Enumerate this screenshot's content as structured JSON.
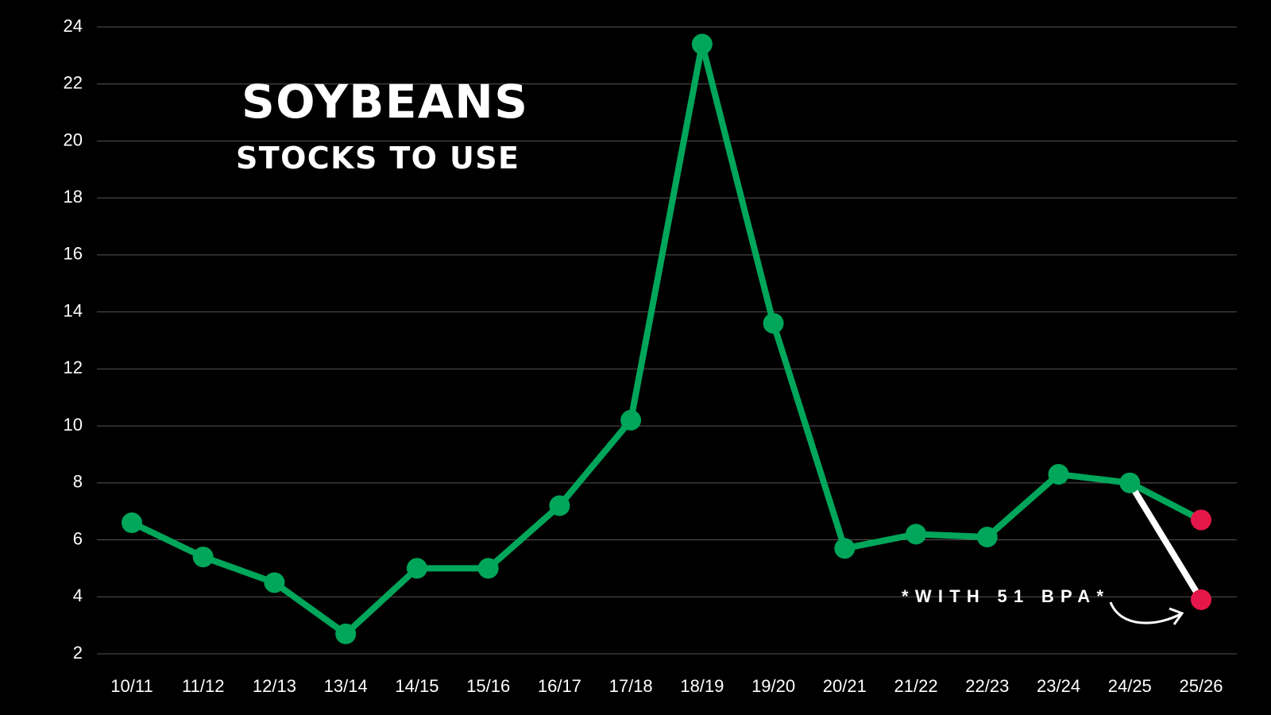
{
  "chart_data": {
    "type": "line",
    "title": "SOYBEANS",
    "subtitle": "STOCKS TO USE",
    "annotation": "*WITH 51 BPA*",
    "categories": [
      "10/11",
      "11/12",
      "12/13",
      "13/14",
      "14/15",
      "15/16",
      "16/17",
      "17/18",
      "18/19",
      "19/20",
      "20/21",
      "21/22",
      "22/23",
      "23/24",
      "24/25",
      "25/26"
    ],
    "series": [
      {
        "color": "#00a65a",
        "values": [
          6.6,
          5.4,
          4.5,
          2.7,
          5.0,
          5.0,
          7.2,
          10.2,
          23.4,
          13.6,
          5.7,
          6.2,
          6.1,
          8.3,
          8.0,
          6.7
        ],
        "marker_colors": [
          "#00a65a",
          "#00a65a",
          "#00a65a",
          "#00a65a",
          "#00a65a",
          "#00a65a",
          "#00a65a",
          "#00a65a",
          "#00a65a",
          "#00a65a",
          "#00a65a",
          "#00a65a",
          "#00a65a",
          "#00a65a",
          "#00a65a",
          "#e5174a"
        ]
      },
      {
        "color": "#ffffff",
        "values": [
          null,
          null,
          null,
          null,
          null,
          null,
          null,
          null,
          null,
          null,
          null,
          null,
          null,
          null,
          8.0,
          3.9
        ],
        "marker_colors": [
          null,
          null,
          null,
          null,
          null,
          null,
          null,
          null,
          null,
          null,
          null,
          null,
          null,
          null,
          null,
          "#e5174a"
        ]
      }
    ],
    "ylim": [
      2,
      24
    ],
    "yticks": [
      2,
      4,
      6,
      8,
      10,
      12,
      14,
      16,
      18,
      20,
      22,
      24
    ],
    "grid": true
  }
}
